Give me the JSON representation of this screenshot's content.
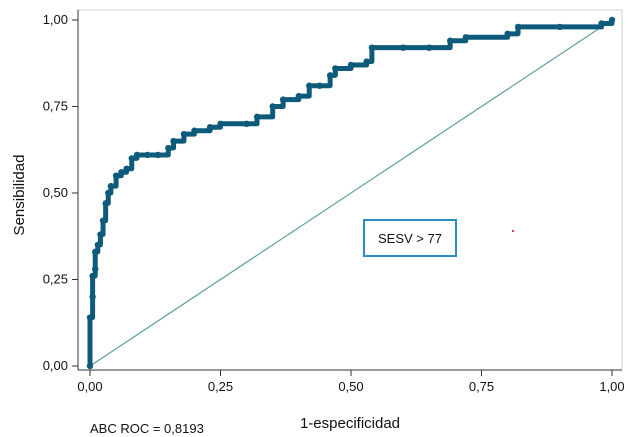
{
  "chart_data": {
    "type": "line",
    "xlabel": "1-especificidad",
    "ylabel": "Sensibilidad",
    "xlim": [
      0,
      1
    ],
    "ylim": [
      0,
      1
    ],
    "x_ticks": [
      "0,00",
      "0,25",
      "0,50",
      "0,75",
      "1,00"
    ],
    "y_ticks": [
      "0,00",
      "0,25",
      "0,50",
      "0,75",
      "1,00"
    ],
    "grid": false,
    "annotation": "SESV > 77",
    "footnote": "ABC ROC = 0,8193",
    "colors": {
      "roc": "#0e5a7a",
      "reference": "#5f9ea0",
      "box": "#2a8fc0"
    },
    "series": [
      {
        "style": "roc-curve",
        "x": [
          0.0,
          0.0,
          0.005,
          0.005,
          0.01,
          0.01,
          0.015,
          0.02,
          0.025,
          0.03,
          0.035,
          0.04,
          0.05,
          0.06,
          0.07,
          0.08,
          0.09,
          0.11,
          0.13,
          0.15,
          0.16,
          0.18,
          0.2,
          0.23,
          0.25,
          0.3,
          0.32,
          0.35,
          0.37,
          0.4,
          0.42,
          0.44,
          0.46,
          0.47,
          0.5,
          0.53,
          0.54,
          0.6,
          0.65,
          0.69,
          0.72,
          0.8,
          0.82,
          0.9,
          0.98,
          1.0
        ],
        "y": [
          0.0,
          0.14,
          0.2,
          0.26,
          0.28,
          0.33,
          0.35,
          0.38,
          0.42,
          0.47,
          0.5,
          0.52,
          0.55,
          0.56,
          0.57,
          0.6,
          0.61,
          0.61,
          0.61,
          0.63,
          0.65,
          0.67,
          0.68,
          0.69,
          0.7,
          0.7,
          0.72,
          0.75,
          0.77,
          0.78,
          0.81,
          0.81,
          0.84,
          0.86,
          0.87,
          0.88,
          0.92,
          0.92,
          0.92,
          0.94,
          0.95,
          0.96,
          0.98,
          0.98,
          0.99,
          1.0
        ]
      },
      {
        "style": "reference-diagonal",
        "x": [
          0,
          1
        ],
        "y": [
          0,
          1
        ]
      }
    ]
  }
}
